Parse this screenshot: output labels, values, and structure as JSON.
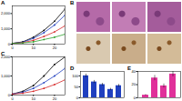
{
  "chart_data": [
    {
      "type": "line",
      "title": "A",
      "x": [
        0,
        5,
        10,
        15,
        20,
        25
      ],
      "series": [
        {
          "color": "#000000",
          "marker": "circle",
          "values": [
            50,
            150,
            450,
            900,
            1500,
            2300
          ]
        },
        {
          "color": "#1f3fbf",
          "marker": "circle",
          "values": [
            50,
            130,
            380,
            750,
            1250,
            1900
          ]
        },
        {
          "color": "#d62728",
          "marker": "circle",
          "values": [
            50,
            100,
            250,
            500,
            800,
            1200
          ]
        },
        {
          "color": "#2ca02c",
          "marker": "circle",
          "values": [
            50,
            80,
            150,
            300,
            450,
            650
          ]
        }
      ],
      "xlim": [
        0,
        25
      ],
      "xticks": [
        0,
        10,
        20
      ],
      "ylim": [
        0,
        2500
      ],
      "yticks": [
        0,
        1000,
        2000
      ]
    },
    {
      "type": "line",
      "title": "C",
      "x": [
        0,
        5,
        10,
        15,
        20,
        25
      ],
      "series": [
        {
          "color": "#000000",
          "marker": "circle",
          "values": [
            50,
            200,
            500,
            1000,
            1600,
            2000
          ]
        },
        {
          "color": "#1f3fbf",
          "marker": "circle",
          "values": [
            50,
            150,
            350,
            650,
            1000,
            1400
          ]
        },
        {
          "color": "#d62728",
          "marker": "circle",
          "values": [
            50,
            100,
            200,
            350,
            550,
            800
          ]
        }
      ],
      "xlim": [
        0,
        25
      ],
      "xticks": [
        0,
        10,
        20
      ],
      "ylim": [
        0,
        2000
      ],
      "yticks": [
        0,
        1000,
        2000
      ]
    },
    {
      "type": "bar",
      "title": "D",
      "categories": [
        null,
        null,
        null,
        null,
        null
      ],
      "values": [
        100,
        72,
        60,
        38,
        55
      ],
      "errors": [
        8,
        7,
        6,
        5,
        6
      ],
      "color": "#1f3fbf",
      "ylim": [
        0,
        120
      ],
      "yticks": [
        0,
        50,
        100
      ]
    },
    {
      "type": "bar",
      "title": "E",
      "categories": [
        null,
        null,
        null,
        null
      ],
      "values": [
        4,
        30,
        18,
        36
      ],
      "errors": [
        1,
        4,
        3,
        4
      ],
      "color": "#e0309a",
      "ylim": [
        0,
        40
      ],
      "yticks": [
        0,
        20,
        40
      ]
    }
  ],
  "image_panel": {
    "label": "B"
  }
}
